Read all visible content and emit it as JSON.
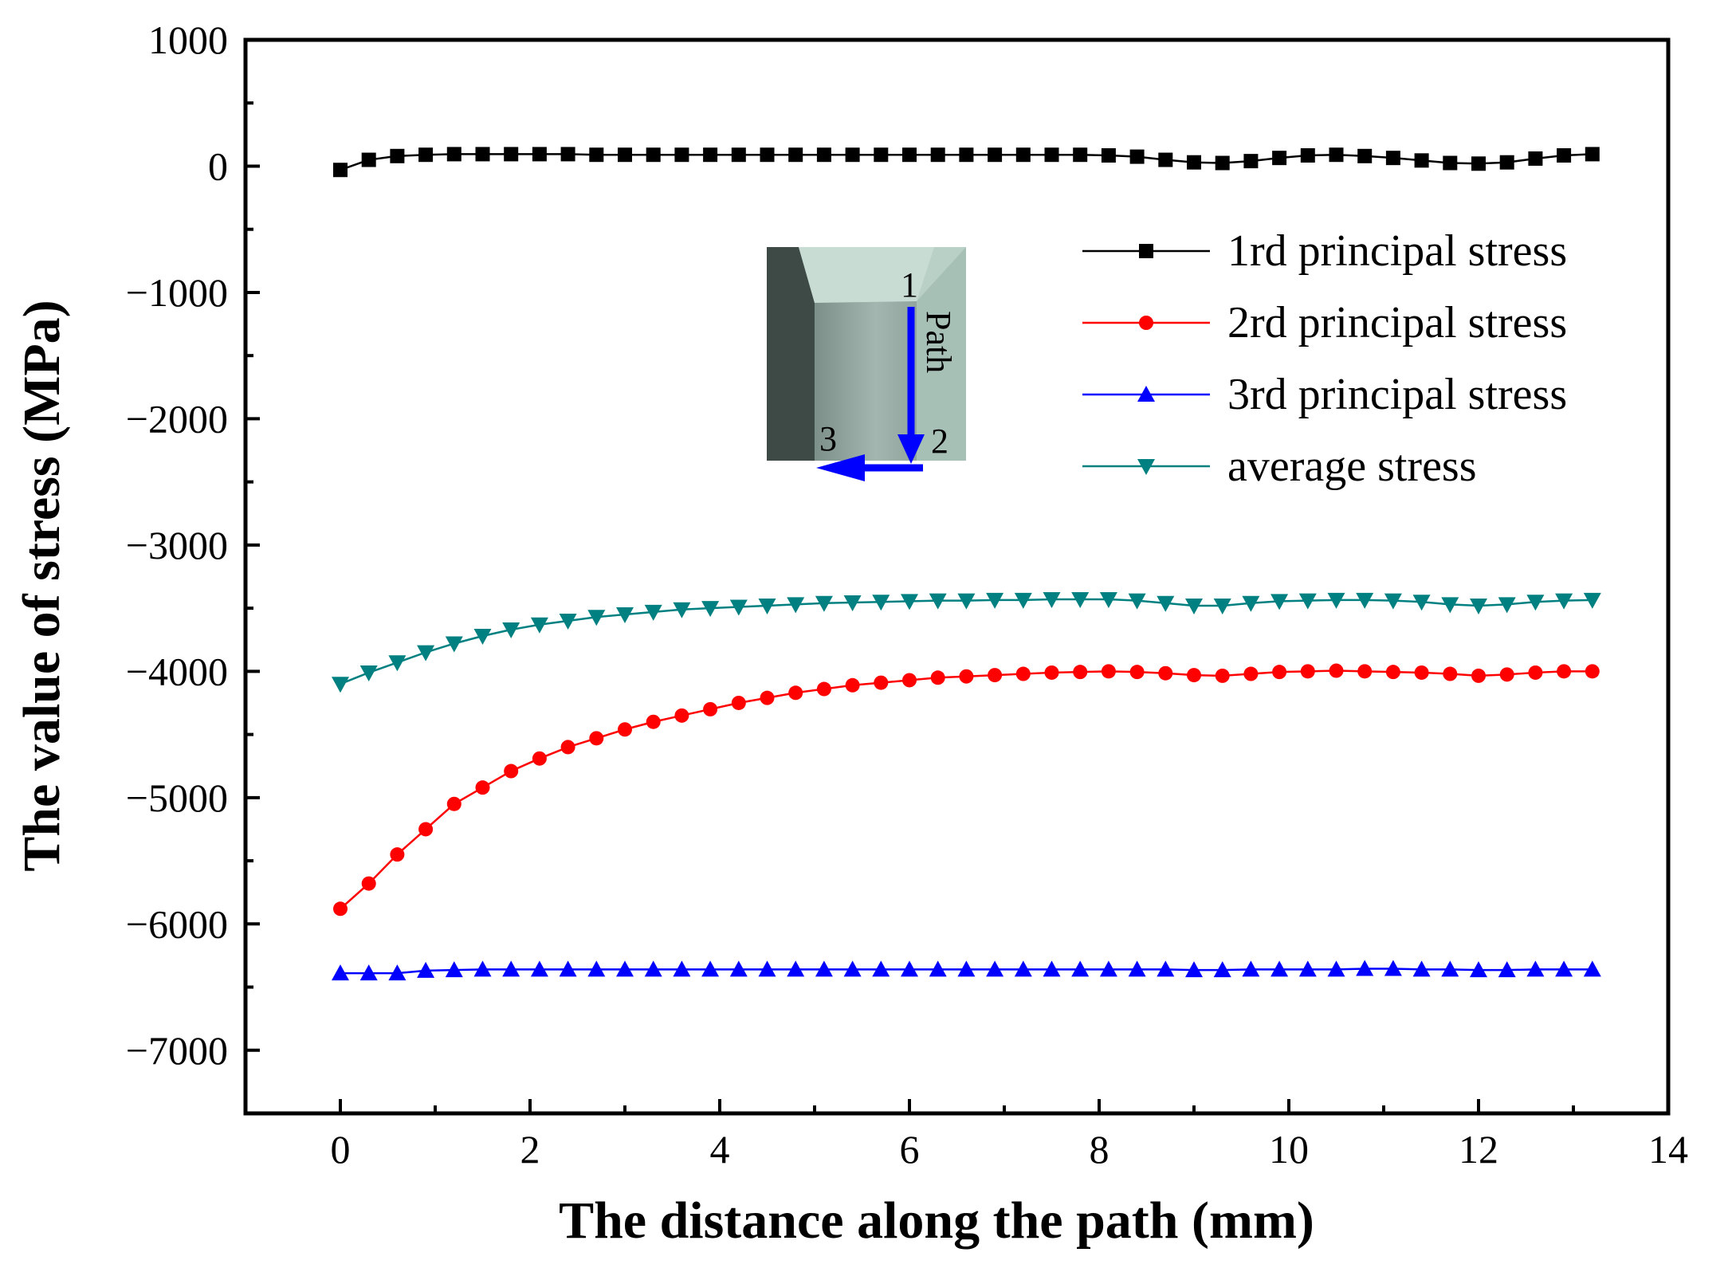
{
  "chart_data": {
    "type": "line",
    "title": "",
    "xlabel": "The distance along the path (mm)",
    "ylabel": "The value of stress (MPa)",
    "xlim": [
      -1,
      14
    ],
    "ylim": [
      -7500,
      1000
    ],
    "xticks": [
      0,
      2,
      4,
      6,
      8,
      10,
      12,
      14
    ],
    "yticks": [
      1000,
      0,
      -1000,
      -2000,
      -3000,
      -4000,
      -5000,
      -6000,
      -7000
    ],
    "xtick_labels": [
      "0",
      "2",
      "4",
      "6",
      "8",
      "10",
      "12",
      "14"
    ],
    "ytick_labels": [
      "1000",
      "0",
      "−1000",
      "−2000",
      "−3000",
      "−4000",
      "−5000",
      "−6000",
      "−7000"
    ],
    "legend_position": "top-right",
    "series": [
      {
        "name": "1rd principal stress",
        "color": "#000000",
        "marker": "square",
        "x": [
          0,
          0.3,
          0.6,
          0.9,
          1.2,
          1.5,
          1.8,
          2.1,
          2.4,
          2.7,
          3.0,
          3.3,
          3.6,
          3.9,
          4.2,
          4.5,
          4.8,
          5.1,
          5.4,
          5.7,
          6.0,
          6.3,
          6.6,
          6.9,
          7.2,
          7.5,
          7.8,
          8.1,
          8.4,
          8.7,
          9.0,
          9.3,
          9.6,
          9.9,
          10.2,
          10.5,
          10.8,
          11.1,
          11.4,
          11.7,
          12.0,
          12.3,
          12.6,
          12.9,
          13.2
        ],
        "y": [
          -30,
          50,
          80,
          90,
          95,
          95,
          95,
          95,
          95,
          90,
          90,
          90,
          90,
          90,
          90,
          90,
          90,
          90,
          90,
          90,
          90,
          90,
          90,
          90,
          90,
          90,
          90,
          85,
          75,
          50,
          30,
          25,
          40,
          65,
          85,
          90,
          80,
          65,
          45,
          25,
          20,
          30,
          60,
          85,
          95
        ]
      },
      {
        "name": "2rd principal stress",
        "color": "#ff0000",
        "marker": "circle",
        "x": [
          0,
          0.3,
          0.6,
          0.9,
          1.2,
          1.5,
          1.8,
          2.1,
          2.4,
          2.7,
          3.0,
          3.3,
          3.6,
          3.9,
          4.2,
          4.5,
          4.8,
          5.1,
          5.4,
          5.7,
          6.0,
          6.3,
          6.6,
          6.9,
          7.2,
          7.5,
          7.8,
          8.1,
          8.4,
          8.7,
          9.0,
          9.3,
          9.6,
          9.9,
          10.2,
          10.5,
          10.8,
          11.1,
          11.4,
          11.7,
          12.0,
          12.3,
          12.6,
          12.9,
          13.2
        ],
        "y": [
          -5880,
          -5680,
          -5450,
          -5250,
          -5050,
          -4920,
          -4790,
          -4690,
          -4600,
          -4530,
          -4460,
          -4400,
          -4350,
          -4300,
          -4250,
          -4210,
          -4170,
          -4140,
          -4110,
          -4090,
          -4070,
          -4050,
          -4040,
          -4030,
          -4020,
          -4010,
          -4005,
          -4000,
          -4005,
          -4015,
          -4030,
          -4035,
          -4020,
          -4005,
          -4000,
          -3995,
          -4000,
          -4005,
          -4010,
          -4020,
          -4035,
          -4025,
          -4010,
          -4000,
          -4000
        ]
      },
      {
        "name": "3rd principal stress",
        "color": "#0000ff",
        "marker": "triangle-up",
        "x": [
          0,
          0.3,
          0.6,
          0.9,
          1.2,
          1.5,
          1.8,
          2.1,
          2.4,
          2.7,
          3.0,
          3.3,
          3.6,
          3.9,
          4.2,
          4.5,
          4.8,
          5.1,
          5.4,
          5.7,
          6.0,
          6.3,
          6.6,
          6.9,
          7.2,
          7.5,
          7.8,
          8.1,
          8.4,
          8.7,
          9.0,
          9.3,
          9.6,
          9.9,
          10.2,
          10.5,
          10.8,
          11.1,
          11.4,
          11.7,
          12.0,
          12.3,
          12.6,
          12.9,
          13.2
        ],
        "y": [
          -6390,
          -6390,
          -6390,
          -6370,
          -6365,
          -6360,
          -6360,
          -6360,
          -6360,
          -6360,
          -6360,
          -6360,
          -6360,
          -6360,
          -6360,
          -6360,
          -6360,
          -6360,
          -6360,
          -6360,
          -6360,
          -6360,
          -6360,
          -6360,
          -6360,
          -6360,
          -6360,
          -6360,
          -6360,
          -6360,
          -6365,
          -6365,
          -6360,
          -6360,
          -6360,
          -6360,
          -6355,
          -6355,
          -6360,
          -6360,
          -6365,
          -6365,
          -6360,
          -6360,
          -6360
        ]
      },
      {
        "name": "average stress",
        "color": "#008080",
        "marker": "triangle-down",
        "x": [
          0,
          0.3,
          0.6,
          0.9,
          1.2,
          1.5,
          1.8,
          2.1,
          2.4,
          2.7,
          3.0,
          3.3,
          3.6,
          3.9,
          4.2,
          4.5,
          4.8,
          5.1,
          5.4,
          5.7,
          6.0,
          6.3,
          6.6,
          6.9,
          7.2,
          7.5,
          7.8,
          8.1,
          8.4,
          8.7,
          9.0,
          9.3,
          9.6,
          9.9,
          10.2,
          10.5,
          10.8,
          11.1,
          11.4,
          11.7,
          12.0,
          12.3,
          12.6,
          12.9,
          13.2
        ],
        "y": [
          -4100,
          -4010,
          -3930,
          -3850,
          -3780,
          -3720,
          -3670,
          -3630,
          -3600,
          -3570,
          -3550,
          -3530,
          -3510,
          -3500,
          -3490,
          -3480,
          -3470,
          -3460,
          -3455,
          -3450,
          -3445,
          -3440,
          -3440,
          -3435,
          -3435,
          -3430,
          -3430,
          -3430,
          -3440,
          -3460,
          -3480,
          -3480,
          -3460,
          -3445,
          -3440,
          -3435,
          -3435,
          -3440,
          -3450,
          -3470,
          -3480,
          -3470,
          -3450,
          -3440,
          -3435
        ]
      }
    ]
  },
  "inset": {
    "point1": "1",
    "point2": "2",
    "point3": "3",
    "path_label": "Path"
  }
}
